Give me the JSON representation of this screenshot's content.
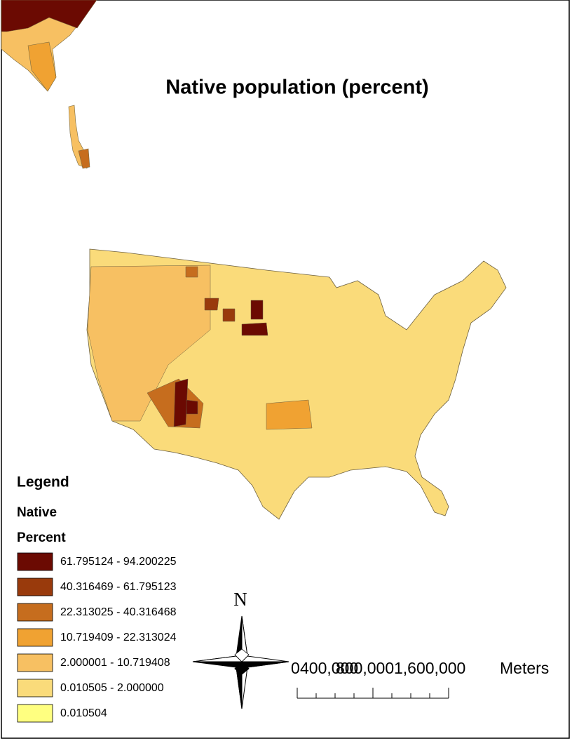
{
  "title": "Native population (percent)",
  "legend": {
    "heading": "Legend",
    "layer": "Native",
    "field": "Percent",
    "classes": [
      {
        "label": "61.795124 - 94.200225",
        "color": "#6b0a02"
      },
      {
        "label": "40.316469 - 61.795123",
        "color": "#993a0c"
      },
      {
        "label": "22.313025 - 40.316468",
        "color": "#c66d1e"
      },
      {
        "label": "10.719409 - 22.313024",
        "color": "#f0a232"
      },
      {
        "label": "2.000001 - 10.719408",
        "color": "#f7c062"
      },
      {
        "label": "0.010505 - 2.000000",
        "color": "#fadb7a"
      },
      {
        "label": "0.010504",
        "color": "#ffff80"
      }
    ]
  },
  "north_arrow": {
    "label": "N"
  },
  "scale_bar": {
    "labels": [
      "0",
      "400,000",
      "800,000",
      "1,600,000"
    ],
    "unit": "Meters"
  }
}
